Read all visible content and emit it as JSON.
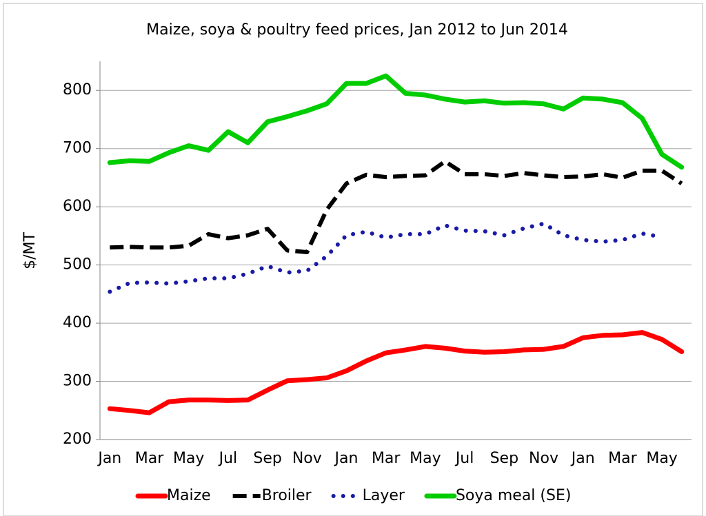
{
  "chart_data": {
    "type": "line",
    "title": "Maize, soya & poultry feed prices, Jan 2012 to Jun 2014",
    "y_label": "$/MT",
    "categories": [
      "Jan",
      null,
      "Mar",
      null,
      "May",
      null,
      "Jul",
      null,
      "Sep",
      null,
      "Nov",
      null,
      "Jan",
      null,
      "Mar",
      null,
      "May",
      null,
      "Jul",
      null,
      "Sep",
      null,
      "Nov",
      null,
      "Jan",
      null,
      "Mar",
      null,
      "May",
      null
    ],
    "ylim": [
      200,
      850
    ],
    "yticks": [
      200,
      300,
      400,
      500,
      600,
      700,
      800
    ],
    "grid": true,
    "legend": "bottom",
    "series": [
      {
        "name": "Maize",
        "color": "#ff0000",
        "style": "solid",
        "values": [
          253,
          250,
          246,
          265,
          268,
          268,
          267,
          268,
          285,
          301,
          303,
          306,
          318,
          335,
          349,
          354,
          360,
          357,
          352,
          350,
          351,
          354,
          355,
          360,
          375,
          379,
          380,
          384,
          372,
          351
        ]
      },
      {
        "name": "Broiler",
        "color": "#000000",
        "style": "dashed",
        "values": [
          530,
          531,
          530,
          530,
          533,
          553,
          546,
          551,
          562,
          525,
          522,
          595,
          640,
          655,
          651,
          653,
          654,
          678,
          656,
          656,
          653,
          658,
          654,
          651,
          652,
          656,
          650,
          662,
          662,
          640
        ]
      },
      {
        "name": "Layer",
        "color": "#1a1aa6",
        "style": "dotted",
        "values": [
          454,
          469,
          470,
          468,
          472,
          477,
          477,
          485,
          498,
          487,
          490,
          515,
          551,
          557,
          547,
          553,
          553,
          568,
          559,
          558,
          551,
          563,
          571,
          551,
          543,
          540,
          543,
          554,
          548,
          null
        ]
      },
      {
        "name": "Soya meal (SE)",
        "color": "#00cc00",
        "style": "solid",
        "values": [
          676,
          679,
          678,
          693,
          705,
          697,
          729,
          710,
          746,
          755,
          765,
          777,
          812,
          812,
          825,
          795,
          792,
          785,
          780,
          782,
          778,
          779,
          777,
          768,
          787,
          785,
          779,
          752,
          690,
          668
        ]
      }
    ]
  }
}
